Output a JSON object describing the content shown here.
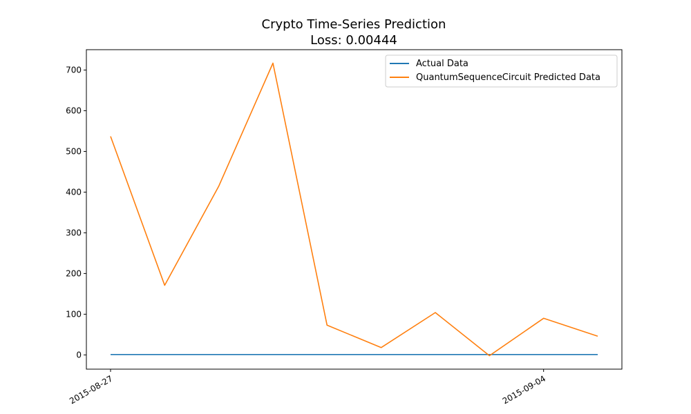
{
  "chart_data": {
    "type": "line",
    "title": "Crypto Time-Series Prediction",
    "subtitle": "Loss: 0.00444",
    "xlabel": "",
    "ylabel": "",
    "x": [
      "2015-08-27",
      "2015-08-28",
      "2015-08-29",
      "2015-08-30",
      "2015-08-31",
      "2015-09-01",
      "2015-09-02",
      "2015-09-03",
      "2015-09-04",
      "2015-09-05"
    ],
    "x_tick_labels": [
      "2015-08-27",
      "2015-09-04"
    ],
    "ylim": [
      -35,
      750
    ],
    "y_ticks": [
      0,
      100,
      200,
      300,
      400,
      500,
      600,
      700
    ],
    "grid": false,
    "legend_position": "top-right",
    "series": [
      {
        "name": "Actual Data",
        "color": "#1f77b4",
        "values": [
          1,
          1,
          1,
          1,
          1,
          1,
          1,
          1,
          1,
          1
        ]
      },
      {
        "name": "QuantumSequenceCircuit Predicted Data",
        "color": "#ff7f0e",
        "values": [
          537,
          171,
          415,
          717,
          73,
          18,
          104,
          -2,
          90,
          46
        ]
      }
    ]
  }
}
